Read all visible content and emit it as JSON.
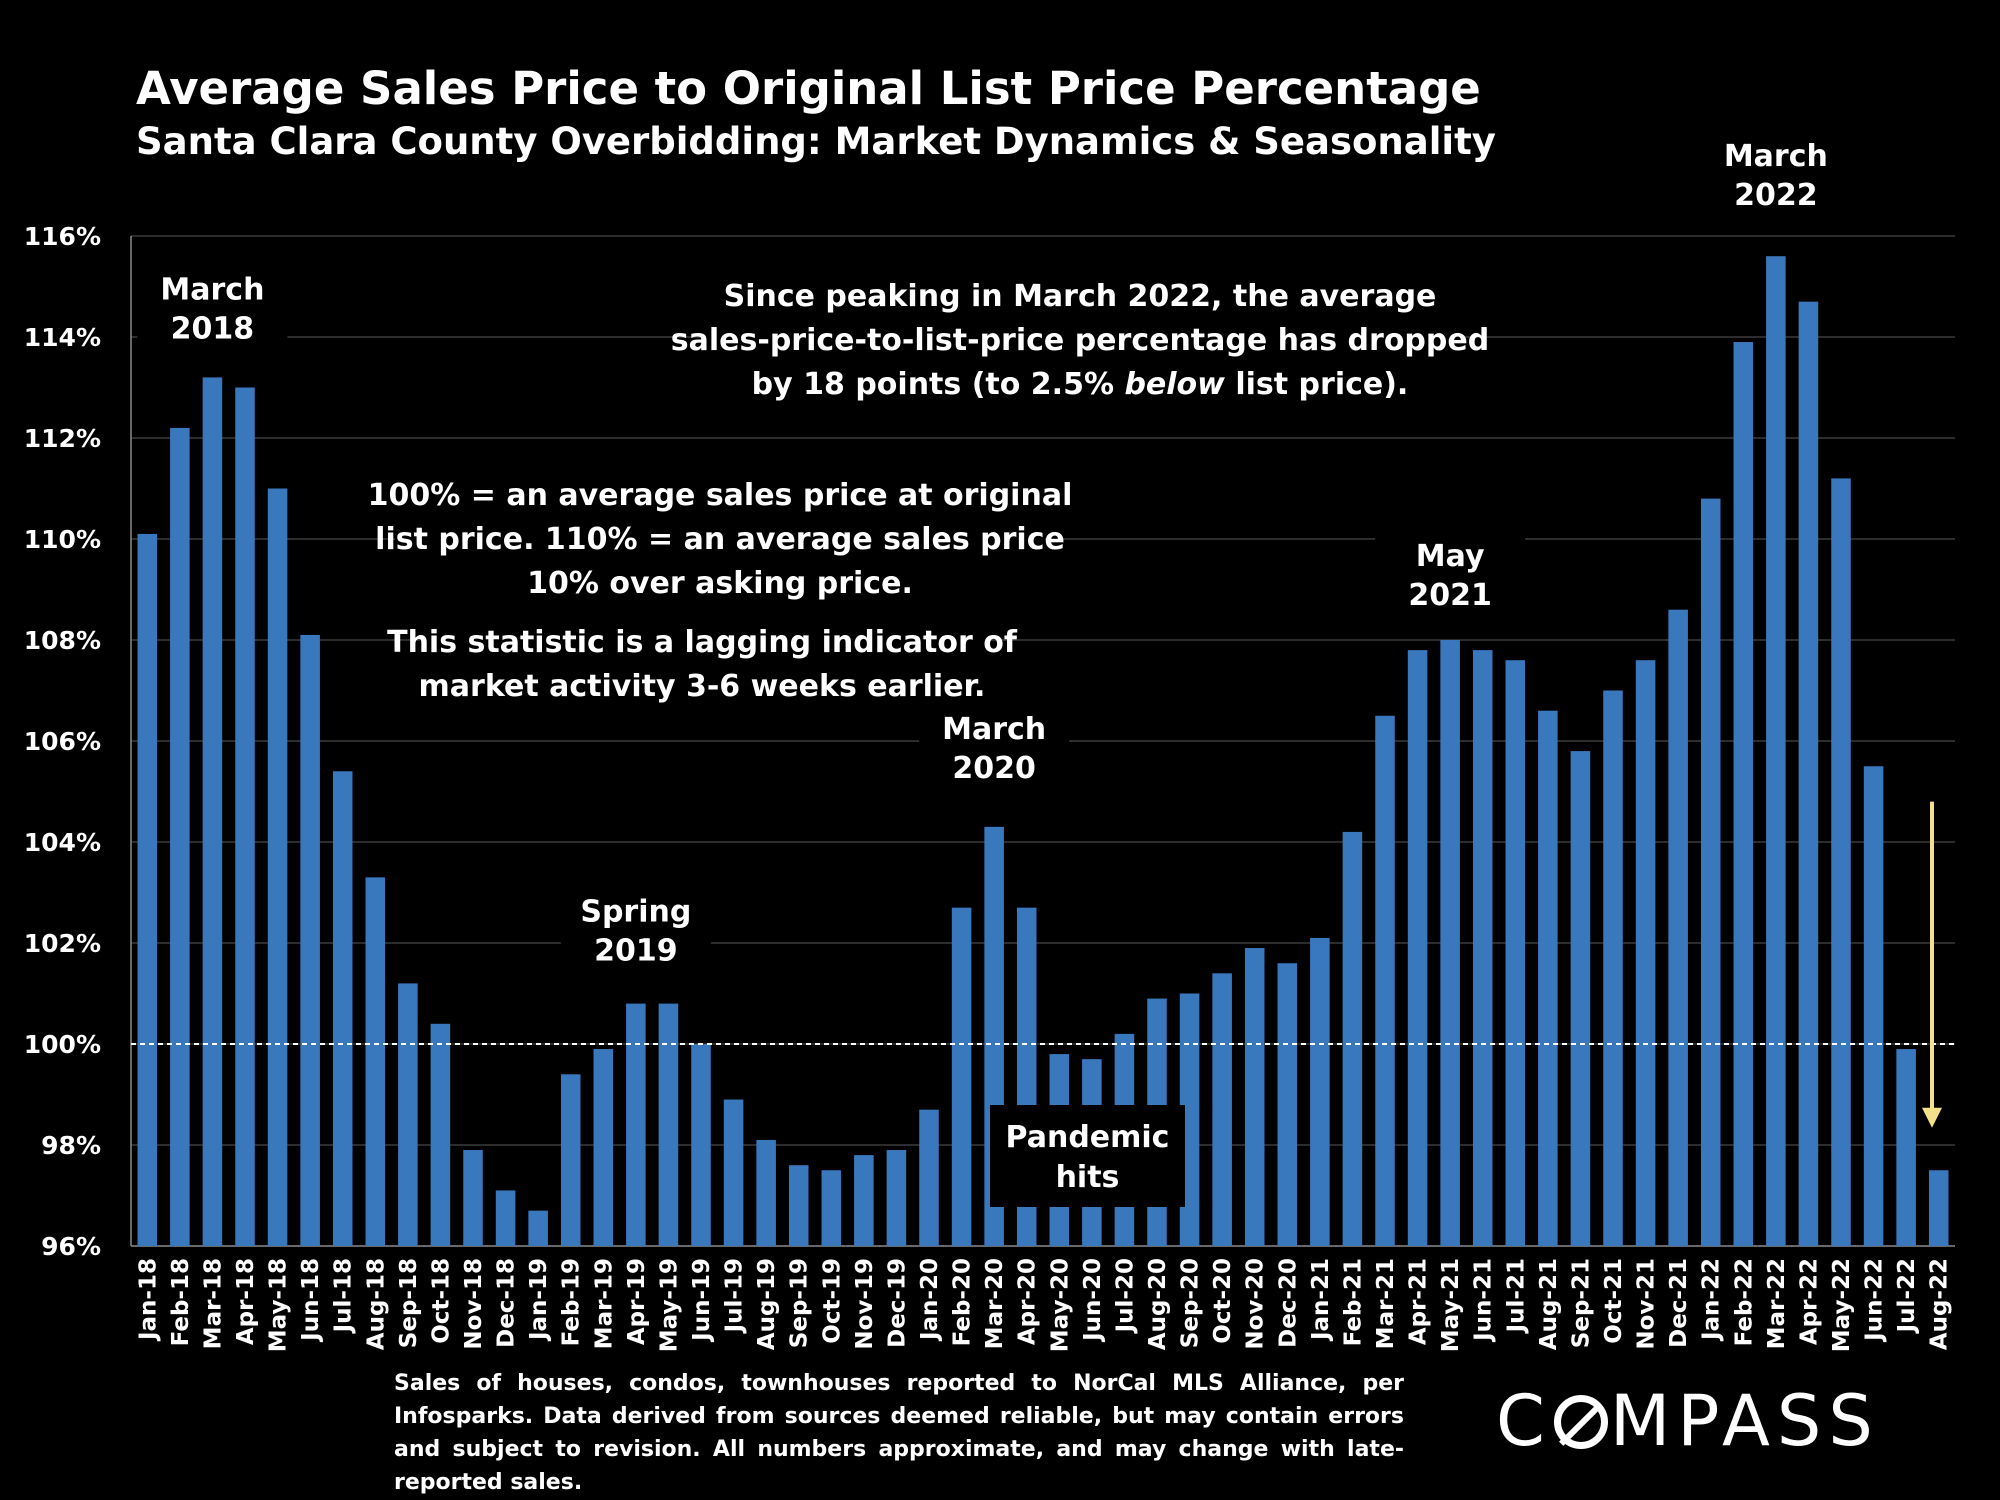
{
  "title": "Average Sales Price to Original List Price Percentage",
  "subtitle": "Santa Clara County Overbidding: Market Dynamics & Seasonality",
  "chart_data": {
    "type": "bar",
    "title": "Average Sales Price to Original List Price Percentage",
    "subtitle": "Santa Clara County Overbidding: Market Dynamics & Seasonality",
    "ylim": [
      96,
      116
    ],
    "yticks": [
      "96%",
      "98%",
      "100%",
      "102%",
      "104%",
      "106%",
      "108%",
      "110%",
      "112%",
      "114%",
      "116%"
    ],
    "grid": true,
    "reference_line": 100,
    "bar_color": "#3A78BE",
    "categories": [
      "Jan-18",
      "Feb-18",
      "Mar-18",
      "Apr-18",
      "May-18",
      "Jun-18",
      "Jul-18",
      "Aug-18",
      "Sep-18",
      "Oct-18",
      "Nov-18",
      "Dec-18",
      "Jan-19",
      "Feb-19",
      "Mar-19",
      "Apr-19",
      "May-19",
      "Jun-19",
      "Jul-19",
      "Aug-19",
      "Sep-19",
      "Oct-19",
      "Nov-19",
      "Dec-19",
      "Jan-20",
      "Feb-20",
      "Mar-20",
      "Apr-20",
      "May-20",
      "Jun-20",
      "Jul-20",
      "Aug-20",
      "Sep-20",
      "Oct-20",
      "Nov-20",
      "Dec-20",
      "Jan-21",
      "Feb-21",
      "Mar-21",
      "Apr-21",
      "May-21",
      "Jun-21",
      "Jul-21",
      "Aug-21",
      "Sep-21",
      "Oct-21",
      "Nov-21",
      "Dec-21",
      "Jan-22",
      "Feb-22",
      "Mar-22",
      "Apr-22",
      "May-22",
      "Jun-22",
      "Jul-22",
      "Aug-22"
    ],
    "values": [
      110.1,
      112.2,
      113.2,
      113.0,
      111.0,
      108.1,
      105.4,
      103.3,
      101.2,
      100.4,
      97.9,
      97.1,
      96.7,
      99.4,
      99.9,
      100.8,
      100.8,
      100.0,
      98.9,
      98.1,
      97.6,
      97.5,
      97.8,
      97.9,
      98.7,
      102.7,
      104.3,
      102.7,
      99.8,
      99.7,
      100.2,
      100.9,
      101.0,
      101.4,
      101.9,
      101.6,
      102.1,
      104.2,
      106.5,
      107.8,
      108.0,
      107.8,
      107.6,
      106.6,
      105.8,
      107.0,
      107.6,
      108.6,
      110.8,
      113.9,
      115.6,
      114.7,
      111.2,
      105.5,
      99.9,
      97.5
    ],
    "annotations": [
      {
        "text": [
          "March",
          "2018"
        ],
        "category": "Mar-18"
      },
      {
        "text": [
          "Spring",
          "2019"
        ],
        "category": "Apr-19"
      },
      {
        "text": [
          "March",
          "2020"
        ],
        "category": "Mar-20"
      },
      {
        "text": [
          "May",
          "2021"
        ],
        "category": "May-21"
      },
      {
        "text": [
          "March",
          "2022"
        ],
        "category": "Mar-22"
      },
      {
        "text": [
          "Pandemic",
          "hits"
        ],
        "category": "Jun-20",
        "boxed": true
      }
    ],
    "notes": [
      [
        "Since peaking in March 2022, the average",
        "sales-price-to-list-price percentage has dropped",
        "by 18 points (to 2.5% below list price)."
      ],
      [
        "100% = an average sales price at original",
        "list price. 110% = an average sales price",
        "10% over asking price."
      ],
      [
        "This statistic is a lagging indicator of",
        "market activity 3-6 weeks earlier."
      ]
    ],
    "arrow": {
      "from": 104.8,
      "to": 98.5,
      "color": "#F3E08A"
    }
  },
  "footnote": "Sales of houses, condos, townhouses reported to NorCal MLS Alliance, per Infosparks. Data derived from sources deemed reliable, but may contain errors and subject to revision. All numbers approximate, and may change with late-reported sales.",
  "logo": {
    "pre": "C",
    "post": "MPASS"
  }
}
